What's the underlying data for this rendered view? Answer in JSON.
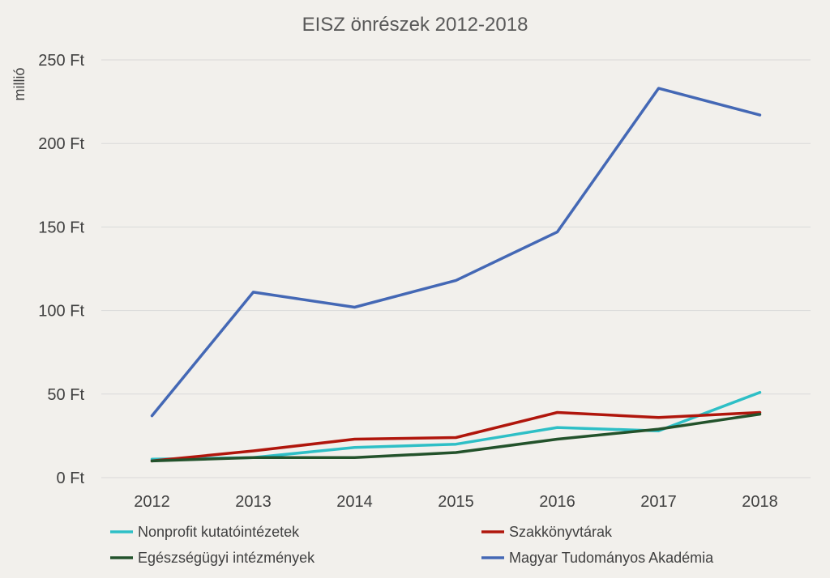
{
  "chart_data": {
    "type": "line",
    "title": "EISZ önrészek 2012-2018",
    "ylabel": "millió",
    "xlabel": "",
    "categories": [
      "2012",
      "2013",
      "2014",
      "2015",
      "2016",
      "2017",
      "2018"
    ],
    "ylim": [
      0,
      250
    ],
    "yticks": [
      {
        "value": 0,
        "label": "0 Ft"
      },
      {
        "value": 50,
        "label": "50 Ft"
      },
      {
        "value": 100,
        "label": "100 Ft"
      },
      {
        "value": 150,
        "label": "150 Ft"
      },
      {
        "value": 200,
        "label": "200 Ft"
      },
      {
        "value": 250,
        "label": "250 Ft"
      }
    ],
    "grid": true,
    "legend_position": "bottom",
    "series": [
      {
        "name": "Nonprofit kutatóintézetek",
        "color": "#2ebfc6",
        "values": [
          11,
          12,
          18,
          20,
          30,
          28,
          51
        ]
      },
      {
        "name": "Szakkönyvtárak",
        "color": "#b0160c",
        "values": [
          10,
          16,
          23,
          24,
          39,
          36,
          39
        ]
      },
      {
        "name": "Egészségügyi intézmények",
        "color": "#23522b",
        "values": [
          10,
          12,
          12,
          15,
          23,
          29,
          38
        ]
      },
      {
        "name": "Magyar Tudományos Akadémia",
        "color": "#4468b5",
        "values": [
          37,
          111,
          102,
          118,
          147,
          233,
          217
        ]
      }
    ]
  }
}
